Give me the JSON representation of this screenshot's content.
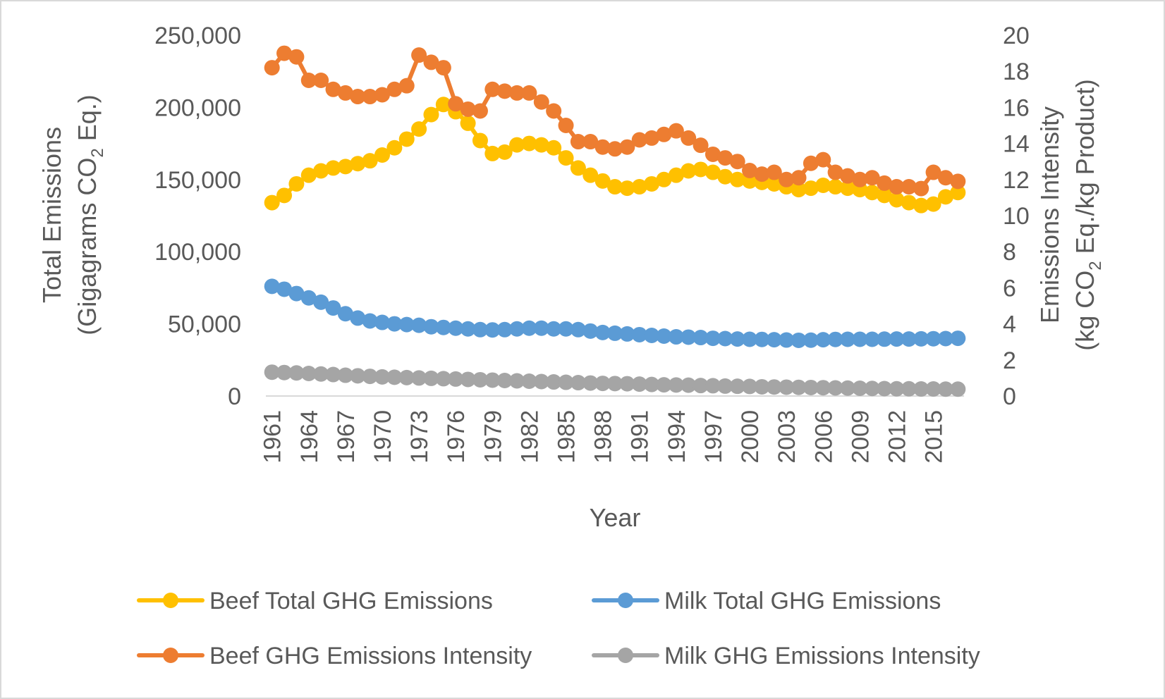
{
  "chart_data": {
    "type": "line",
    "title": "",
    "xlabel": "Year",
    "ylabel_left": [
      "Total Emissions",
      "(Gigagrams CO",
      "2",
      " Eq.)"
    ],
    "ylabel_right": [
      "Emissions Intensity",
      "(kg CO",
      "2",
      " Eq./kg Product)"
    ],
    "ylim_left": [
      0,
      250000
    ],
    "ylim_right": [
      0,
      20
    ],
    "yticks_left": [
      "0",
      "50,000",
      "100,000",
      "150,000",
      "200,000",
      "250,000"
    ],
    "yticks_right": [
      "0",
      "2",
      "4",
      "6",
      "8",
      "10",
      "12",
      "14",
      "16",
      "18",
      "20"
    ],
    "x": [
      1961,
      1962,
      1963,
      1964,
      1965,
      1966,
      1967,
      1968,
      1969,
      1970,
      1971,
      1972,
      1973,
      1974,
      1975,
      1976,
      1977,
      1978,
      1979,
      1980,
      1981,
      1982,
      1983,
      1984,
      1985,
      1986,
      1987,
      1988,
      1989,
      1990,
      1991,
      1992,
      1993,
      1994,
      1995,
      1996,
      1997,
      1998,
      1999,
      2000,
      2001,
      2002,
      2003,
      2004,
      2005,
      2006,
      2007,
      2008,
      2009,
      2010,
      2011,
      2012,
      2013,
      2014,
      2015,
      2016,
      2017
    ],
    "xtick_labels": [
      "1961",
      "1964",
      "1967",
      "1970",
      "1973",
      "1976",
      "1979",
      "1982",
      "1985",
      "1988",
      "1991",
      "1994",
      "1997",
      "2000",
      "2003",
      "2006",
      "2009",
      "2012",
      "2015"
    ],
    "grid": false,
    "legend_position": "bottom",
    "series": [
      {
        "name": "Beef Total GHG Emissions",
        "axis": "left",
        "color": "#FFC000",
        "values": [
          134000,
          139000,
          147000,
          153000,
          156000,
          158000,
          159000,
          161000,
          163000,
          167000,
          172000,
          178000,
          185000,
          195000,
          202000,
          197000,
          189000,
          177000,
          168000,
          169000,
          174000,
          175000,
          174000,
          172000,
          165000,
          158000,
          153000,
          149000,
          145000,
          144000,
          145000,
          147000,
          150000,
          153000,
          156000,
          157000,
          155000,
          152000,
          150000,
          149000,
          148000,
          147000,
          145000,
          143000,
          144000,
          146000,
          145000,
          144000,
          143000,
          141000,
          139000,
          136000,
          134000,
          132000,
          133000,
          138000,
          141000
        ]
      },
      {
        "name": "Milk Total GHG Emissions",
        "axis": "left",
        "color": "#5B9BD5",
        "values": [
          76000,
          74000,
          71000,
          68000,
          65000,
          61000,
          57000,
          54000,
          52000,
          51000,
          50000,
          49500,
          49000,
          48000,
          47500,
          47000,
          46500,
          46000,
          45800,
          46000,
          46500,
          47000,
          47000,
          46500,
          46500,
          46000,
          45000,
          44000,
          43500,
          43000,
          42500,
          42000,
          41500,
          41000,
          40800,
          40500,
          40000,
          39800,
          39500,
          39300,
          39200,
          39000,
          38800,
          38600,
          38700,
          39000,
          39200,
          39300,
          39300,
          39300,
          39400,
          39500,
          39500,
          39600,
          39700,
          39800,
          40000
        ]
      },
      {
        "name": "Beef GHG Emissions Intensity",
        "axis": "right",
        "color": "#ED7D31",
        "values": [
          18.2,
          19.0,
          18.8,
          17.5,
          17.5,
          17.0,
          16.8,
          16.6,
          16.6,
          16.7,
          17.0,
          17.2,
          18.9,
          18.5,
          18.2,
          16.2,
          15.9,
          15.8,
          17.0,
          16.9,
          16.8,
          16.8,
          16.3,
          15.8,
          15.0,
          14.1,
          14.1,
          13.8,
          13.7,
          13.8,
          14.2,
          14.3,
          14.5,
          14.7,
          14.3,
          13.9,
          13.4,
          13.2,
          13.0,
          12.5,
          12.3,
          12.4,
          12.0,
          12.1,
          12.9,
          13.1,
          12.4,
          12.2,
          12.0,
          12.1,
          11.8,
          11.6,
          11.6,
          11.5,
          12.4,
          12.1,
          11.9
        ]
      },
      {
        "name": "Milk GHG Emissions Intensity",
        "axis": "right",
        "color": "#A5A5A5",
        "values": [
          1.32,
          1.3,
          1.28,
          1.25,
          1.22,
          1.19,
          1.15,
          1.12,
          1.09,
          1.06,
          1.04,
          1.02,
          1.0,
          0.98,
          0.96,
          0.94,
          0.92,
          0.9,
          0.88,
          0.86,
          0.84,
          0.82,
          0.8,
          0.78,
          0.76,
          0.74,
          0.72,
          0.7,
          0.69,
          0.68,
          0.66,
          0.64,
          0.62,
          0.61,
          0.6,
          0.58,
          0.57,
          0.55,
          0.54,
          0.53,
          0.51,
          0.5,
          0.49,
          0.48,
          0.47,
          0.46,
          0.45,
          0.44,
          0.43,
          0.42,
          0.41,
          0.4,
          0.4,
          0.39,
          0.39,
          0.38,
          0.38
        ]
      }
    ]
  }
}
